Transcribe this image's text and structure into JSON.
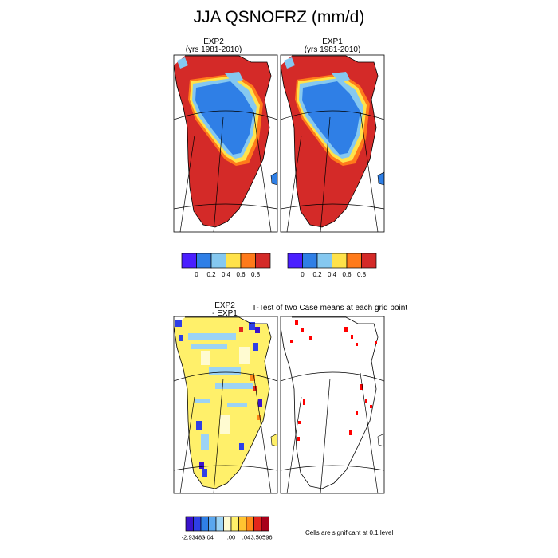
{
  "title": "JJA QSNOFRZ (mm/d)",
  "panels": {
    "exp2": {
      "name": "EXP2",
      "years": "(yrs 1981-2010)"
    },
    "exp1": {
      "name": "EXP1",
      "years": "(yrs 1981-2010)"
    },
    "diff": {
      "line1": "EXP2",
      "line2": "- EXP1"
    },
    "ttest": {
      "title": "T-Test of two Case means at each grid point",
      "note": "Cells are significant at 0.1 level"
    }
  },
  "chart_data": [
    {
      "type": "heatmap",
      "name": "EXP2 (yrs 1981-2010)",
      "colorbar": {
        "levels": [
          0,
          0.2,
          0.4,
          0.6,
          0.8
        ],
        "tick_labels": [
          "0",
          "0.2",
          "0.4",
          "0.6",
          "0.8"
        ],
        "colors": [
          "#4a1fff",
          "#2f7fe6",
          "#85c8f0",
          "#ffe24a",
          "#ff7a1a",
          "#d42a28"
        ]
      }
    },
    {
      "type": "heatmap",
      "name": "EXP1 (yrs 1981-2010)",
      "colorbar": {
        "levels": [
          0,
          0.2,
          0.4,
          0.6,
          0.8
        ],
        "tick_labels": [
          "0",
          "0.2",
          "0.4",
          "0.6",
          "0.8"
        ],
        "colors": [
          "#4a1fff",
          "#2f7fe6",
          "#85c8f0",
          "#ffe24a",
          "#ff7a1a",
          "#d42a28"
        ]
      }
    },
    {
      "type": "heatmap",
      "name": "EXP2 - EXP1",
      "colorbar": {
        "tick_labels": [
          "-2.93483",
          "-.04",
          ".00",
          ".04",
          "3.50596"
        ],
        "colors": [
          "#3a12cc",
          "#2e3fe6",
          "#2f7fe6",
          "#5aa7ef",
          "#9cd3f5",
          "#fffbd1",
          "#fff06a",
          "#ffc431",
          "#ff8a1a",
          "#e3261c",
          "#a8001a"
        ]
      }
    },
    {
      "type": "heatmap",
      "name": "T-Test of two Case means at each grid point",
      "significance_level": 0.1,
      "significant_color": "#ff0000"
    }
  ]
}
